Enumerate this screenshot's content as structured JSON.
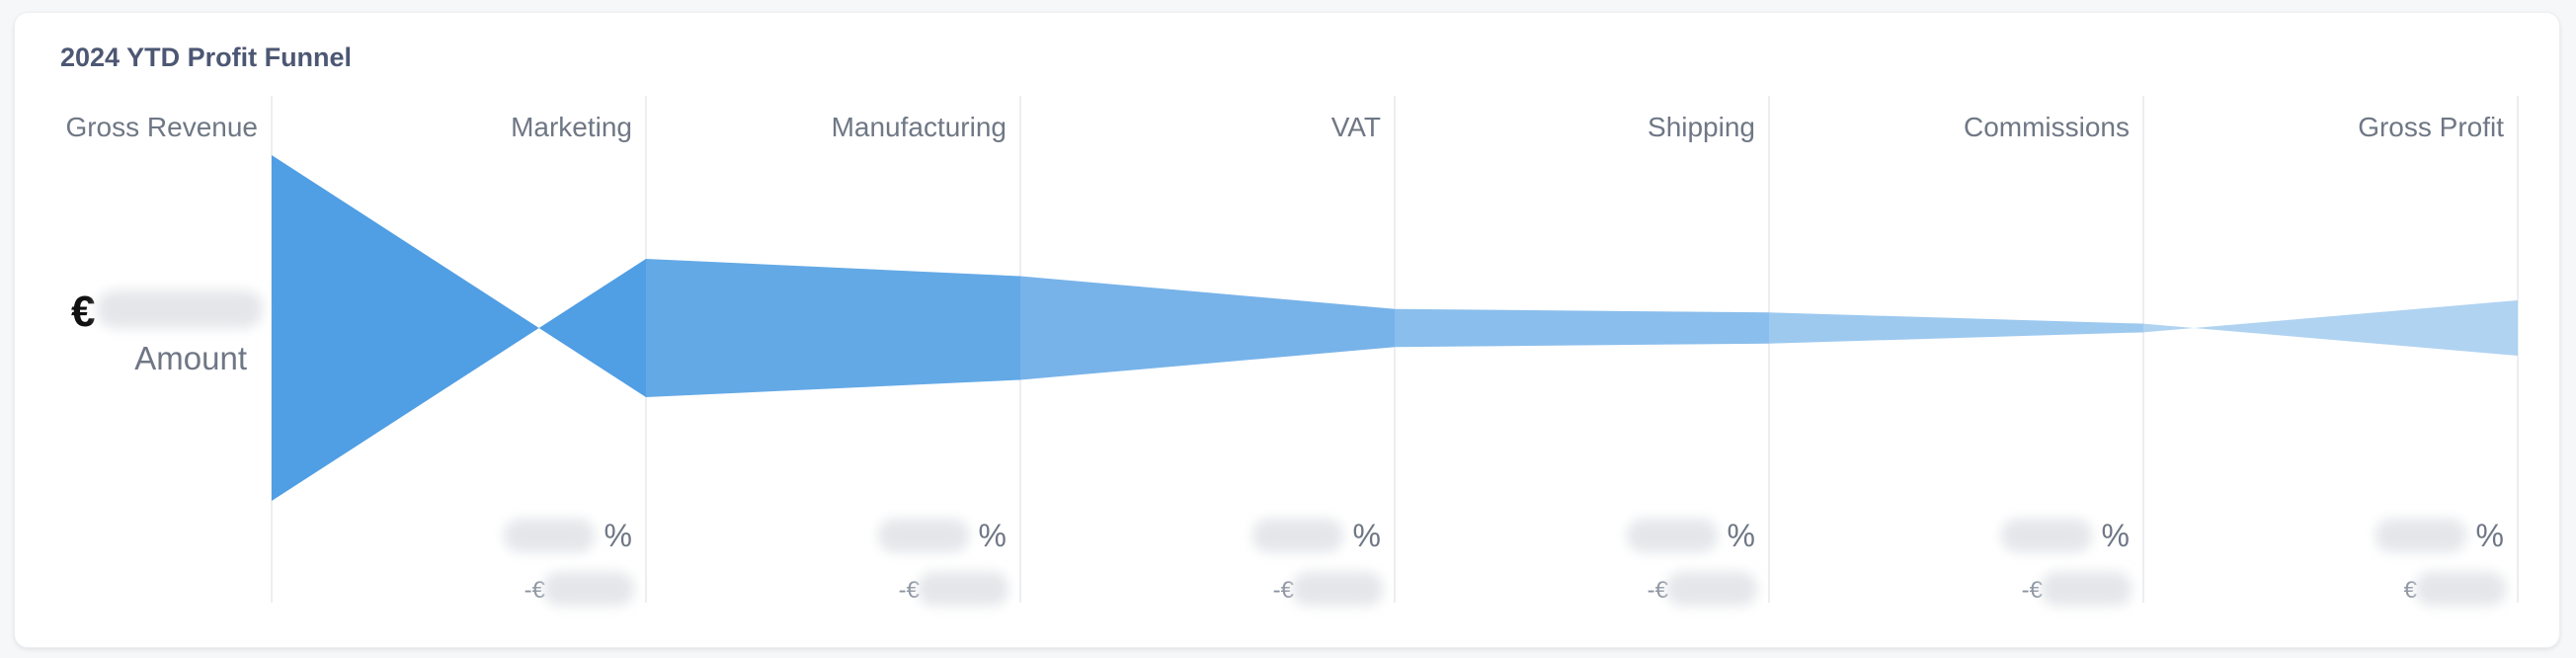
{
  "title": "2024 YTD Profit Funnel",
  "first_step": {
    "currency_prefix": "€",
    "sub_label": "Amount"
  },
  "pct_suffix": " %",
  "amt_prefix_negative": "-€",
  "amt_prefix_positive": "€",
  "colors": {
    "funnel_base": "#509ee3",
    "divider": "#eceef1",
    "redacted": "#e4e6ea"
  },
  "chart_data": {
    "type": "funnel",
    "title": "2024 YTD Profit Funnel",
    "steps": [
      "Gross Revenue",
      "Marketing",
      "Manufacturing",
      "VAT",
      "Shipping",
      "Commissions",
      "Gross Profit"
    ],
    "relative_values": [
      1.0,
      -0.4,
      -0.3,
      -0.11,
      -0.09,
      -0.025,
      0.16
    ],
    "values_redacted": true,
    "series": [
      {
        "values": [
          1.0,
          -0.4,
          -0.3,
          -0.11,
          -0.09,
          -0.025,
          0.16
        ]
      }
    ]
  }
}
